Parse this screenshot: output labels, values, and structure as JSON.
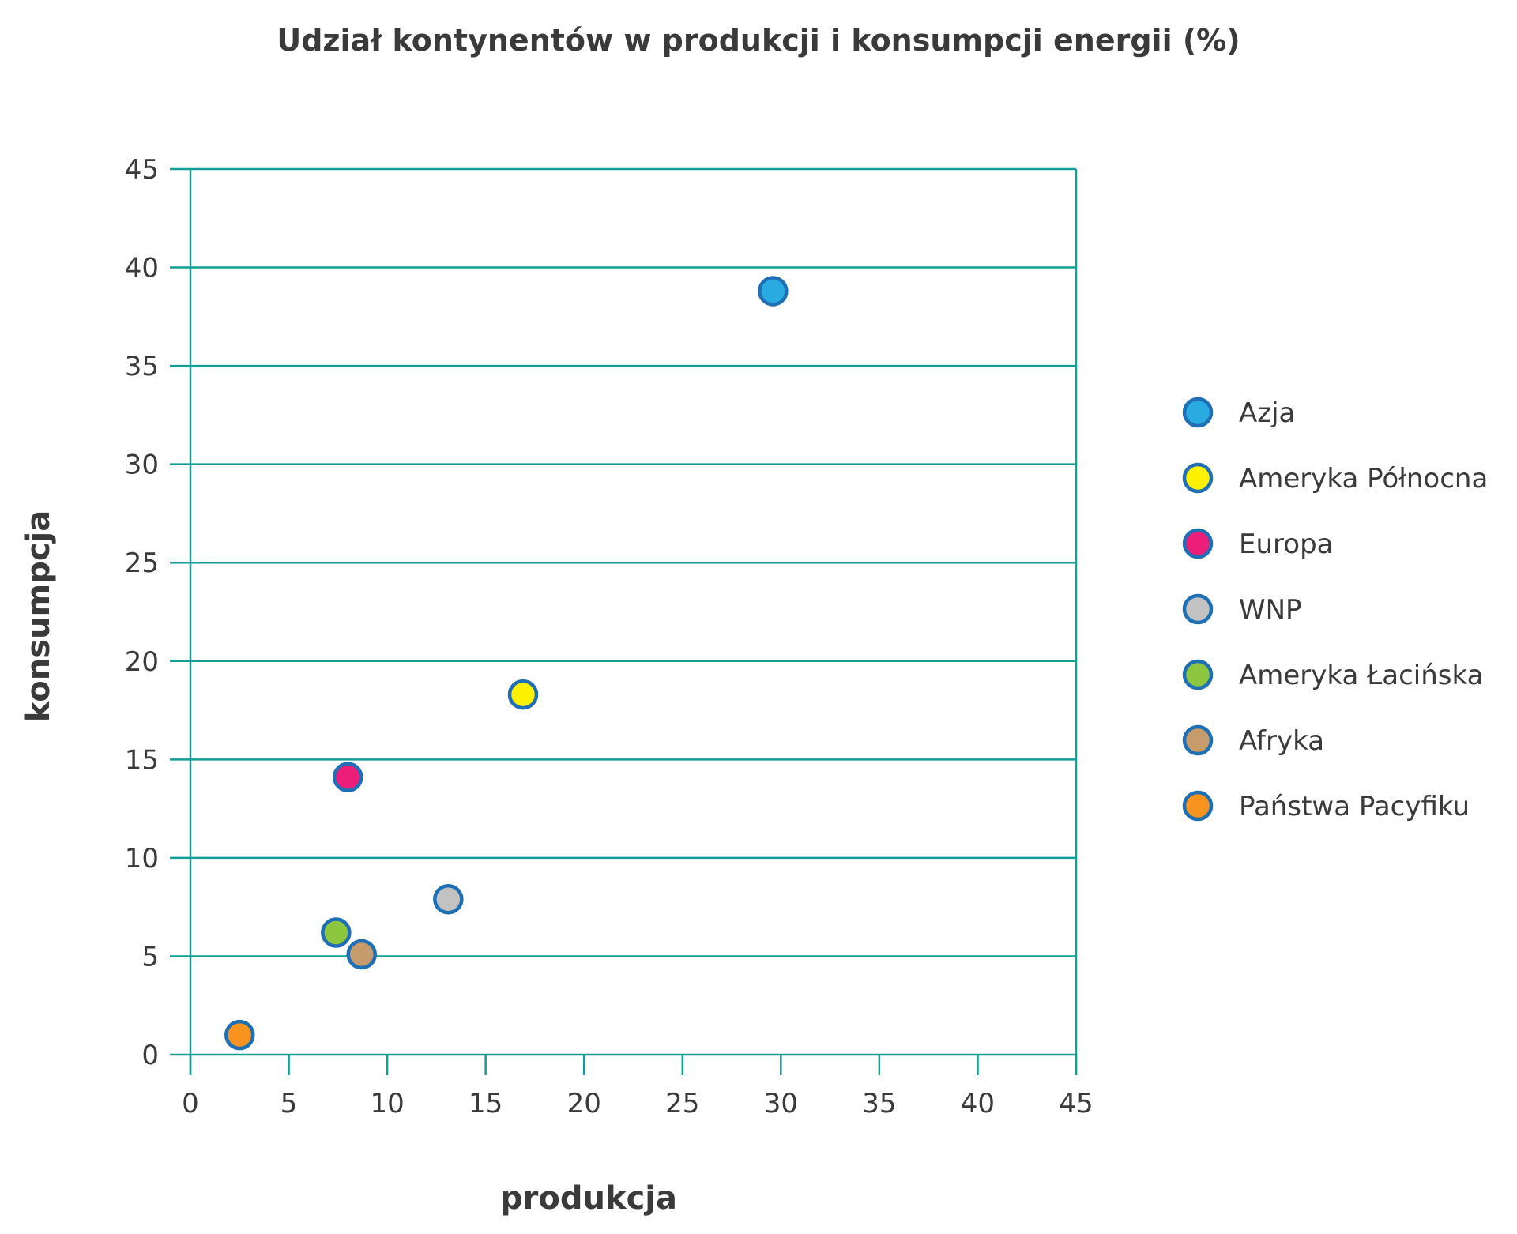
{
  "chart_data": {
    "type": "scatter",
    "title": "Udział kontynentów w produkcji i konsumpcji energii (%)",
    "xlabel": "produkcja",
    "ylabel": "konsumpcja",
    "xlim": [
      0,
      45
    ],
    "ylim": [
      0,
      45
    ],
    "xticks": [
      0,
      5,
      10,
      15,
      20,
      25,
      30,
      35,
      40,
      45
    ],
    "yticks": [
      0,
      5,
      10,
      15,
      20,
      25,
      30,
      35,
      40,
      45
    ],
    "grid": "horizontal",
    "legend_position": "right",
    "marker_border_color": "#1f6fb5",
    "grid_color": "#139e96",
    "series": [
      {
        "name": "Azja",
        "x": 29.6,
        "y": 38.8,
        "color": "#29abe2"
      },
      {
        "name": "Ameryka Północna",
        "x": 16.9,
        "y": 18.3,
        "color": "#fff200"
      },
      {
        "name": "Europa",
        "x": 8.0,
        "y": 14.1,
        "color": "#ec1e79"
      },
      {
        "name": "WNP",
        "x": 13.1,
        "y": 7.9,
        "color": "#c2c2c2"
      },
      {
        "name": "Ameryka Łacińska",
        "x": 7.4,
        "y": 6.2,
        "color": "#8dc63f"
      },
      {
        "name": "Afryka",
        "x": 8.7,
        "y": 5.1,
        "color": "#c69c6d"
      },
      {
        "name": "Państwa Pacyfiku",
        "x": 2.5,
        "y": 1.0,
        "color": "#f7931e"
      }
    ]
  }
}
